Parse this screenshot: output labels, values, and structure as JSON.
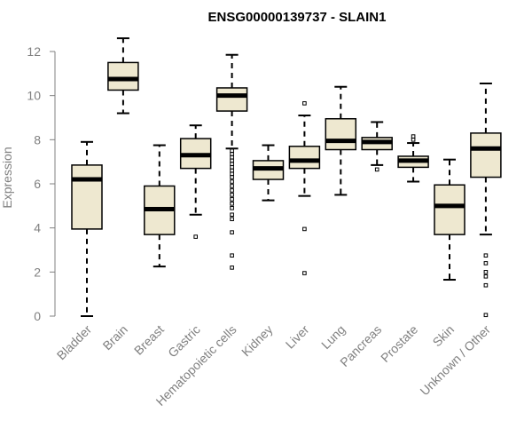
{
  "chart_data": {
    "type": "boxplot",
    "title": "ENSG00000139737 - SLAIN1",
    "xlabel": "",
    "ylabel": "Expression",
    "ylim": [
      0,
      12.5
    ],
    "yticks": [
      0,
      2,
      4,
      6,
      8,
      10,
      12
    ],
    "grid": false,
    "box_fill": "#EEE8D0",
    "box_stroke": "#000000",
    "categories": [
      "Bladder",
      "Brain",
      "Breast",
      "Gastric",
      "Hematopoietic cells",
      "Kidney",
      "Liver",
      "Lung",
      "Pancreas",
      "Prostate",
      "Skin",
      "Unknown / Other"
    ],
    "boxes": [
      {
        "whisker_low": 0.0,
        "q1": 3.95,
        "median": 6.2,
        "q3": 6.85,
        "whisker_high": 7.9,
        "outliers": []
      },
      {
        "whisker_low": 9.2,
        "q1": 10.25,
        "median": 10.75,
        "q3": 11.5,
        "whisker_high": 12.6,
        "outliers": []
      },
      {
        "whisker_low": 2.25,
        "q1": 3.7,
        "median": 4.85,
        "q3": 5.9,
        "whisker_high": 7.75,
        "outliers": []
      },
      {
        "whisker_low": 4.6,
        "q1": 6.7,
        "median": 7.3,
        "q3": 8.05,
        "whisker_high": 8.65,
        "outliers": [
          3.6
        ]
      },
      {
        "whisker_low": 7.6,
        "q1": 9.3,
        "median": 10.0,
        "q3": 10.35,
        "whisker_high": 11.85,
        "outliers": [
          7.5,
          7.35,
          7.2,
          7.05,
          6.9,
          6.75,
          6.6,
          6.45,
          6.3,
          6.1,
          5.9,
          5.7,
          5.5,
          5.3,
          5.1,
          4.9,
          4.6,
          4.4,
          3.8,
          2.75,
          2.2
        ]
      },
      {
        "whisker_low": 5.25,
        "q1": 6.2,
        "median": 6.7,
        "q3": 7.05,
        "whisker_high": 7.75,
        "outliers": []
      },
      {
        "whisker_low": 5.45,
        "q1": 6.7,
        "median": 7.05,
        "q3": 7.7,
        "whisker_high": 9.1,
        "outliers": [
          9.65,
          3.95,
          1.95
        ]
      },
      {
        "whisker_low": 5.5,
        "q1": 7.55,
        "median": 7.95,
        "q3": 8.95,
        "whisker_high": 10.4,
        "outliers": []
      },
      {
        "whisker_low": 6.85,
        "q1": 7.55,
        "median": 7.9,
        "q3": 8.1,
        "whisker_high": 8.8,
        "outliers": [
          6.65
        ]
      },
      {
        "whisker_low": 6.1,
        "q1": 6.75,
        "median": 7.05,
        "q3": 7.25,
        "whisker_high": 7.85,
        "outliers": [
          8.15,
          8.0
        ]
      },
      {
        "whisker_low": 1.65,
        "q1": 3.7,
        "median": 5.0,
        "q3": 5.95,
        "whisker_high": 7.1,
        "outliers": []
      },
      {
        "whisker_low": 3.7,
        "q1": 6.3,
        "median": 7.6,
        "q3": 8.3,
        "whisker_high": 10.55,
        "outliers": [
          2.75,
          2.4,
          2.0,
          1.8,
          1.4,
          0.05
        ]
      }
    ]
  }
}
